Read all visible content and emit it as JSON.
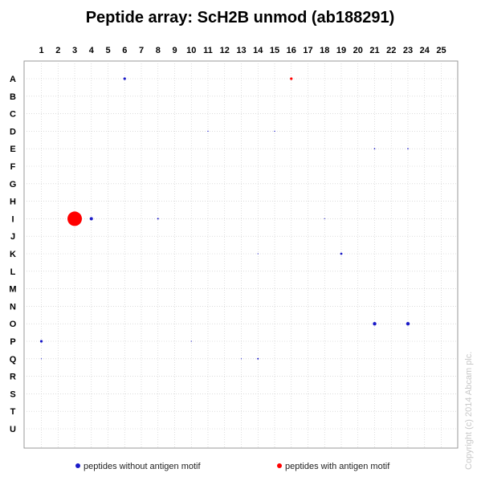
{
  "chart_data": {
    "type": "scatter",
    "title": "Peptide array: ScH2B unmod (ab188291)",
    "x_categories": [
      "1",
      "2",
      "3",
      "4",
      "5",
      "6",
      "7",
      "8",
      "9",
      "10",
      "11",
      "12",
      "13",
      "14",
      "15",
      "16",
      "17",
      "18",
      "19",
      "20",
      "21",
      "22",
      "23",
      "24",
      "25"
    ],
    "y_categories": [
      "A",
      "B",
      "C",
      "D",
      "E",
      "F",
      "G",
      "H",
      "I",
      "J",
      "K",
      "L",
      "M",
      "N",
      "O",
      "P",
      "Q",
      "R",
      "S",
      "T",
      "U"
    ],
    "grid": true,
    "legend_position": "bottom",
    "colors": {
      "without_motif": "#1a1ac8",
      "with_motif": "#ff0000",
      "grid": "#c8c8c8",
      "frame": "#999999"
    },
    "series": [
      {
        "name": "peptides without antigen motif",
        "color": "#1a1ac8",
        "points": [
          {
            "col": 6,
            "row": "A",
            "size": 1.6
          },
          {
            "col": 11,
            "row": "D",
            "size": 0.7
          },
          {
            "col": 15,
            "row": "D",
            "size": 0.7
          },
          {
            "col": 21,
            "row": "E",
            "size": 0.8
          },
          {
            "col": 23,
            "row": "E",
            "size": 0.8
          },
          {
            "col": 4,
            "row": "I",
            "size": 2.0
          },
          {
            "col": 8,
            "row": "I",
            "size": 1.0
          },
          {
            "col": 18,
            "row": "I",
            "size": 0.6
          },
          {
            "col": 14,
            "row": "K",
            "size": 0.6
          },
          {
            "col": 19,
            "row": "K",
            "size": 1.4
          },
          {
            "col": 21,
            "row": "O",
            "size": 2.2
          },
          {
            "col": 23,
            "row": "O",
            "size": 2.2
          },
          {
            "col": 1,
            "row": "P",
            "size": 1.6
          },
          {
            "col": 10,
            "row": "P",
            "size": 0.6
          },
          {
            "col": 1,
            "row": "Q",
            "size": 0.6
          },
          {
            "col": 13,
            "row": "Q",
            "size": 0.6
          },
          {
            "col": 14,
            "row": "Q",
            "size": 1.0
          }
        ]
      },
      {
        "name": "peptides with antigen motif",
        "color": "#ff0000",
        "points": [
          {
            "col": 16,
            "row": "A",
            "size": 1.6
          },
          {
            "col": 3,
            "row": "I",
            "size": 9.0
          }
        ]
      }
    ],
    "legend": [
      {
        "label": "peptides without antigen motif",
        "color": "#1a1ac8"
      },
      {
        "label": "peptides with antigen motif",
        "color": "#ff0000"
      }
    ],
    "annotation": "Copyright (c) 2014 Abcam plc."
  }
}
